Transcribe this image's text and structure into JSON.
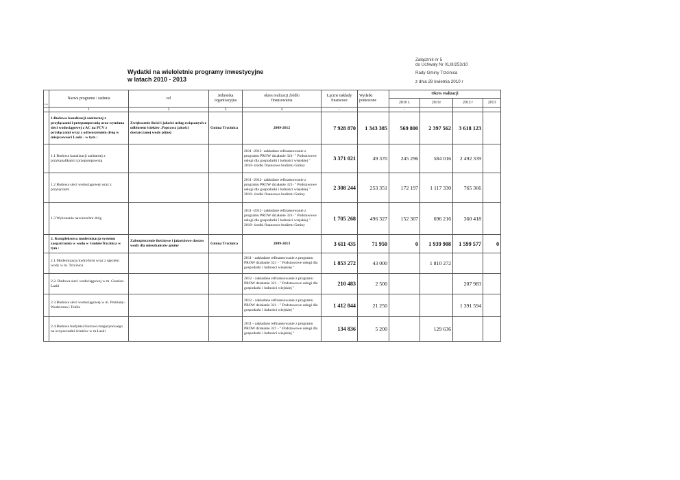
{
  "title": {
    "line1": "Wydatki na wieloletnie programy inwestycyjne",
    "line2": "w latach 2010 - 2013"
  },
  "annotation": {
    "line1": "Załącznik nr 5",
    "line2": "do  Uchwały Nr XLIII/253/10",
    "line3": "Rady Gminy Trzcinica",
    "line4": "z dnia 28 kwietnia  2010 r"
  },
  "header": {
    "lp": "L.p.",
    "name": "Nazwa  programu / zadania",
    "cel": "cel",
    "jednostka": "Jednostka organizacyjna",
    "okres": "okres realizacji źródło finansowania",
    "laczne": "Łączne nakłady finansowe",
    "wydatki": "Wydatki poniesione",
    "okres_realizacji": "Okres realizacji",
    "y2010": "2010 r.",
    "y2011": "2011r",
    "y2012": "2012 r",
    "y2013": "2013"
  },
  "col_numbers": [
    "1",
    "2",
    "3",
    "4",
    "-",
    "",
    "-"
  ],
  "rows": [
    {
      "name": "1.Budowa kanalizacji sanitarnej  z przyłączami i przepompownią  oraz wymiana sieci wodociągowej z AC na PCV z przyłączami wraz z odtworzeniem dróg w miejscowości Laski - w tym :",
      "cel": "Zwiększenie ilości i  jakości usług związanych z odbiorem ścieków .Poprawa jakości dostarczanej  wody pitnej",
      "jednostka": "Gmina Trzcinica",
      "okres": "2009-2012",
      "laczne": "7 928 870",
      "wydatki": "1 343 385",
      "y2010": "569 800",
      "y2011": "2 397 562",
      "y2012": "3 618 123",
      "y2013": ""
    },
    {
      "name": "1.1 Budowa kanalizacji    sanitarnej z przykanalikami i przepompownią",
      "cel": "",
      "jednostka": "",
      "okres": " 2011 -2012- zakładane refinansowanie z programu PROW działanie 321- \" Podstawowe usługi  dla gospodarki i ludności wiejskiej  \" 2010- środki finansowe budżetu Gminy",
      "laczne": "3 371 021",
      "wydatki": "49 370",
      "y2010": "245 296",
      "y2011": "584 016",
      "y2012": "2 492 339",
      "y2013": ""
    },
    {
      "name": "1.2 Budowa sieci wodociągowej wraz z przyłączami",
      "cel": "",
      "jednostka": "",
      "okres": " 2011 -2012- zakładane refinansowanie z programu PROW działanie 321- \" Podstawowe usługi  dla gospodarki i ludności wiejskiej  \" 2010- środki finansowe budżetu Gminy",
      "laczne": "2 308 244",
      "wydatki": "253 351",
      "y2010": "172 197",
      "y2011": "1 117 330",
      "y2012": "765 366",
      "y2013": ""
    },
    {
      "name": "1.3 Wykonanie nawierzchni dróg",
      "cel": "",
      "jednostka": "",
      "okres": " 2011 -2012- zakładane refinansowanie z programu PROW działanie 321- \" Podstawowe usługi  dla gospodarki i ludności wiejskiej  \" 2010- środki finansowe budżetu Gminy",
      "laczne": "1 705 268",
      "wydatki": "496 327",
      "y2010": "152 307",
      "y2011": "696 216",
      "y2012": "360 418",
      "y2013": ""
    },
    {
      "name": "2. Kompleksowa modernizacja systemu zaopatrzenia w wodę w GminieTrzcinica  w tym :",
      "cel": "Zabezpieczenie ilościowe i jakościowe dostaw wody dla mieszkańców gminy",
      "jednostka": "Gmina Trzcinica",
      "okres": "2009-2013",
      "laczne": "3 611 435",
      "wydatki": "71 950",
      "y2010": "0",
      "y2011": "1 939 908",
      "y2012": "1 599 577",
      "y2013": "0"
    },
    {
      "name": "2.1.Modernizacja hydroforni wraz z ujęciem wody w m. Trzcinica",
      "cel": "",
      "jednostka": "",
      "okres": "2011 - zakładane refinansowanie z programu PROW działanie 321 - \" Podstawowe usługi  dla gospodarki i ludności wiejskiej  \"",
      "laczne": "1 853 272",
      "wydatki": "43 000",
      "y2010": "",
      "y2011": "1 810 272",
      "y2012": "",
      "y2013": ""
    },
    {
      "name": "2.2. Budowa sieci wodociągowej w m. Granice- Laski",
      "cel": "",
      "jednostka": "",
      "okres": "2012 - zakładane refinansowanie z programu PROW działanie 321 - \" Podstawowe usługi  dla gospodarki i ludności wiejskiej  \"",
      "laczne": "210 483",
      "wydatki": "2 500",
      "y2010": "",
      "y2011": "",
      "y2012": "207 983",
      "y2013": ""
    },
    {
      "name": "2.3.Budowa sieci wodociągowej w m. Pomiany-Wodziczna i Teklin",
      "cel": "",
      "jednostka": "",
      "okres": "2012 - zakładane refinansowanie z programu PROW działanie 321 - \" Podstawowe usługi  dla gospodarki i ludności wiejskiej  \"",
      "laczne": "1 412 844",
      "wydatki": "21 250",
      "y2010": "",
      "y2011": "",
      "y2012": "1 391 594",
      "y2013": ""
    },
    {
      "name": "2.4.Budowa budynku biurowo-magazynowego na oczyszczalni  ścieków w m.Laski",
      "cel": "",
      "jednostka": "",
      "okres": "2011 - zakładane refinansowanie z programu PROW działanie 321 - \" Podstawowe usługi  dla gospodarki i ludności wiejskiej  \"",
      "laczne": "134 836",
      "wydatki": "5 200",
      "y2010": "",
      "y2011": "129 636",
      "y2012": "",
      "y2013": ""
    }
  ]
}
